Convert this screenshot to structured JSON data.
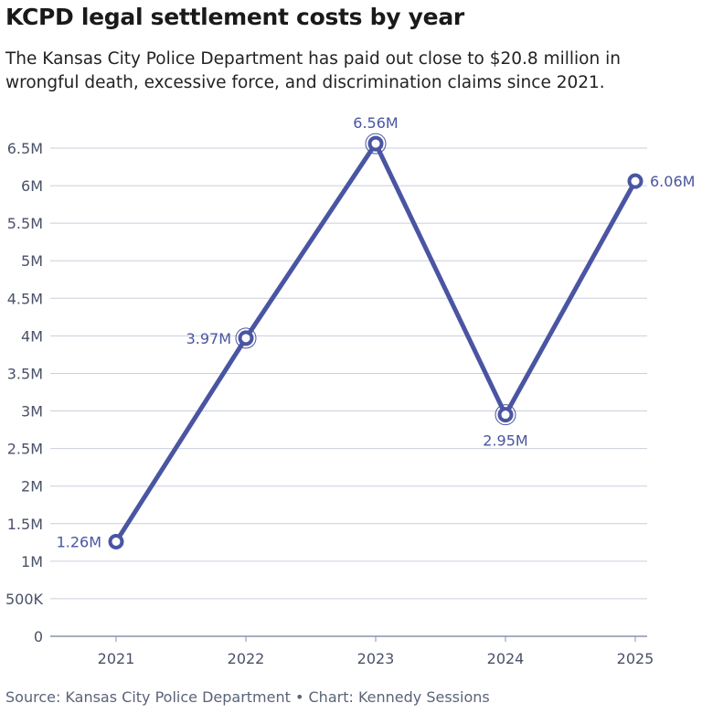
{
  "title": "KCPD legal settlement costs by year",
  "subtitle": "The Kansas City Police Department has paid out close to $20.8 million in wrongful death, excessive force, and discrimination claims since 2021.",
  "source": "Source: Kansas City Police Department • Chart: Kennedy Sessions",
  "chart_data": {
    "type": "line",
    "categories": [
      "2021",
      "2022",
      "2023",
      "2024",
      "2025"
    ],
    "values": [
      1.26,
      3.97,
      6.56,
      2.95,
      6.06
    ],
    "data_labels": [
      "1.26M",
      "3.97M",
      "6.56M",
      "2.95M",
      "6.06M"
    ],
    "unit": "million USD",
    "ylim": [
      0,
      6.5
    ],
    "yticks": [
      0,
      0.5,
      1,
      1.5,
      2,
      2.5,
      3,
      3.5,
      4,
      4.5,
      5,
      5.5,
      6,
      6.5
    ],
    "ytick_labels": [
      "0",
      "500K",
      "1M",
      "1.5M",
      "2M",
      "2.5M",
      "3M",
      "3.5M",
      "4M",
      "4.5M",
      "5M",
      "5.5M",
      "6M",
      "6.5M"
    ],
    "grid": true,
    "line_color": "#4a55a2",
    "grid_color": "#c9cfdc"
  }
}
